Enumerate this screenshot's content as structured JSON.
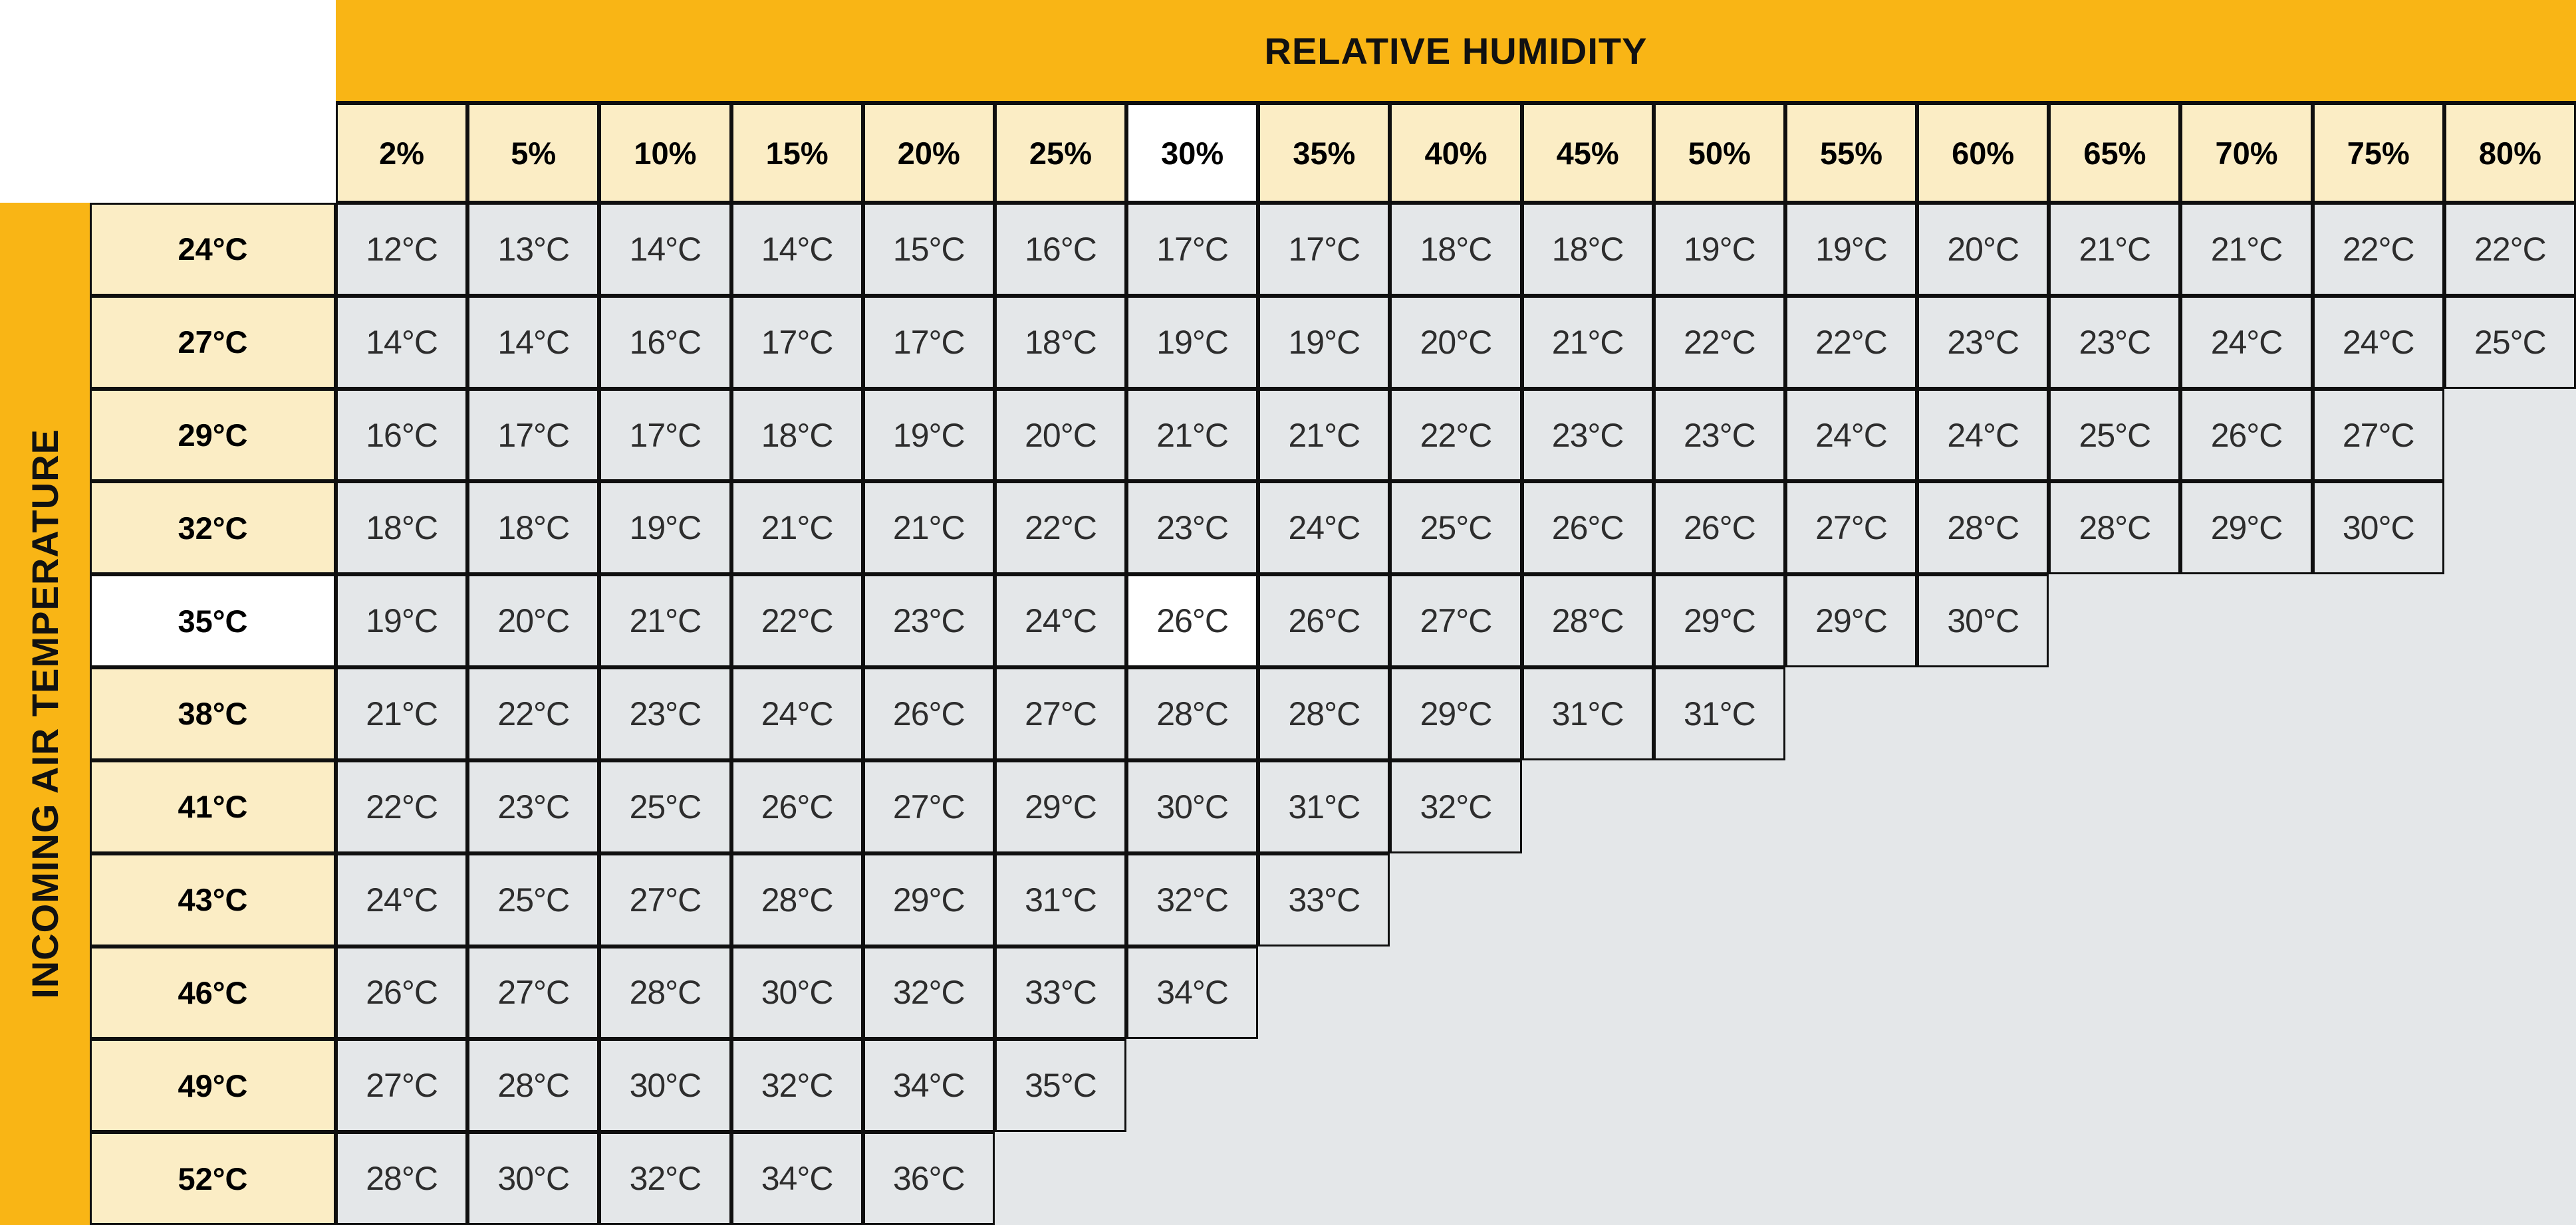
{
  "colors": {
    "gold": "#F9B515",
    "cream": "#FBEDC5",
    "cellgray": "#E4E7E9",
    "white": "#FFFFFF",
    "ink": "#0F0F0F",
    "valtext": "#2D2D2D"
  },
  "chart_data": {
    "type": "table",
    "title": "RELATIVE HUMIDITY",
    "side_title": "INCOMING AIR TEMPERATURE",
    "columns": [
      "2%",
      "5%",
      "10%",
      "15%",
      "20%",
      "25%",
      "30%",
      "35%",
      "40%",
      "45%",
      "50%",
      "55%",
      "60%",
      "65%",
      "70%",
      "75%",
      "80%"
    ],
    "rows": [
      {
        "label": "24°C",
        "values": [
          "12°C",
          "13°C",
          "14°C",
          "14°C",
          "15°C",
          "16°C",
          "17°C",
          "17°C",
          "18°C",
          "18°C",
          "19°C",
          "19°C",
          "20°C",
          "21°C",
          "21°C",
          "22°C",
          "22°C"
        ]
      },
      {
        "label": "27°C",
        "values": [
          "14°C",
          "14°C",
          "16°C",
          "17°C",
          "17°C",
          "18°C",
          "19°C",
          "19°C",
          "20°C",
          "21°C",
          "22°C",
          "22°C",
          "23°C",
          "23°C",
          "24°C",
          "24°C",
          "25°C"
        ]
      },
      {
        "label": "29°C",
        "values": [
          "16°C",
          "17°C",
          "17°C",
          "18°C",
          "19°C",
          "20°C",
          "21°C",
          "21°C",
          "22°C",
          "23°C",
          "23°C",
          "24°C",
          "24°C",
          "25°C",
          "26°C",
          "27°C"
        ]
      },
      {
        "label": "32°C",
        "values": [
          "18°C",
          "18°C",
          "19°C",
          "21°C",
          "21°C",
          "22°C",
          "23°C",
          "24°C",
          "25°C",
          "26°C",
          "26°C",
          "27°C",
          "28°C",
          "28°C",
          "29°C",
          "30°C"
        ]
      },
      {
        "label": "35°C",
        "values": [
          "19°C",
          "20°C",
          "21°C",
          "22°C",
          "23°C",
          "24°C",
          "26°C",
          "26°C",
          "27°C",
          "28°C",
          "29°C",
          "29°C",
          "30°C"
        ]
      },
      {
        "label": "38°C",
        "values": [
          "21°C",
          "22°C",
          "23°C",
          "24°C",
          "26°C",
          "27°C",
          "28°C",
          "28°C",
          "29°C",
          "31°C",
          "31°C"
        ]
      },
      {
        "label": "41°C",
        "values": [
          "22°C",
          "23°C",
          "25°C",
          "26°C",
          "27°C",
          "29°C",
          "30°C",
          "31°C",
          "32°C"
        ]
      },
      {
        "label": "43°C",
        "values": [
          "24°C",
          "25°C",
          "27°C",
          "28°C",
          "29°C",
          "31°C",
          "32°C",
          "33°C"
        ]
      },
      {
        "label": "46°C",
        "values": [
          "26°C",
          "27°C",
          "28°C",
          "30°C",
          "32°C",
          "33°C",
          "34°C"
        ]
      },
      {
        "label": "49°C",
        "values": [
          "27°C",
          "28°C",
          "30°C",
          "32°C",
          "34°C",
          "35°C"
        ]
      },
      {
        "label": "52°C",
        "values": [
          "28°C",
          "30°C",
          "32°C",
          "34°C",
          "36°C"
        ]
      }
    ],
    "highlighted_column": "30%",
    "highlighted_row": "35°C",
    "highlighted_cell_value": "26°C",
    "grid": "on",
    "legend": "none"
  }
}
